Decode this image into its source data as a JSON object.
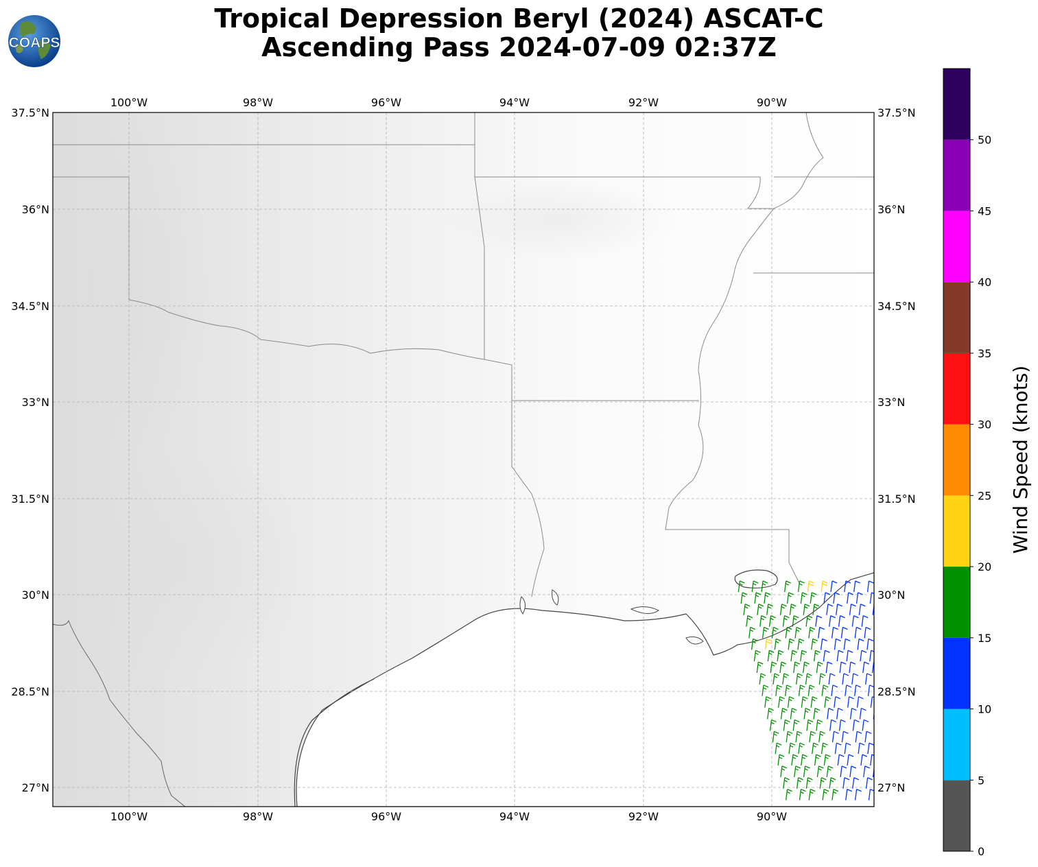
{
  "title": {
    "line1": "Tropical Depression Beryl (2024) ASCAT-C",
    "line2": "Ascending Pass 2024-07-09 02:37Z"
  },
  "logo": {
    "text": "COAPS",
    "icon": "globe-logo-icon"
  },
  "map": {
    "lon_range": [
      -101.2,
      -88.4
    ],
    "lat_range": [
      26.7,
      37.5
    ],
    "gridlines": true,
    "lon_ticks": [
      "100°W",
      "98°W",
      "96°W",
      "94°W",
      "92°W",
      "90°W"
    ],
    "lat_ticks": [
      "37.5°N",
      "36°N",
      "34.5°N",
      "33°N",
      "31.5°N",
      "30°N",
      "28.5°N",
      "27°N"
    ]
  },
  "colorbar": {
    "label": "Wind Speed (knots)",
    "ticks": [
      "0",
      "5",
      "10",
      "15",
      "20",
      "25",
      "30",
      "35",
      "40",
      "45",
      "50"
    ],
    "bins": [
      {
        "min": 0,
        "max": 5,
        "color": "#555555"
      },
      {
        "min": 5,
        "max": 10,
        "color": "#00bfff"
      },
      {
        "min": 10,
        "max": 15,
        "color": "#0033ff"
      },
      {
        "min": 15,
        "max": 20,
        "color": "#009000"
      },
      {
        "min": 20,
        "max": 25,
        "color": "#ffd515"
      },
      {
        "min": 25,
        "max": 30,
        "color": "#ff8c00"
      },
      {
        "min": 30,
        "max": 35,
        "color": "#ff1010"
      },
      {
        "min": 35,
        "max": 40,
        "color": "#85392a"
      },
      {
        "min": 40,
        "max": 45,
        "color": "#ff00ff"
      },
      {
        "min": 45,
        "max": 50,
        "color": "#8a00b5"
      },
      {
        "min": 50,
        "max": 55,
        "color": "#2e0060"
      }
    ]
  },
  "chart_data": {
    "type": "scatter",
    "title": "Tropical Depression Beryl (2024) ASCAT-C Ascending Pass 2024-07-09 02:37Z",
    "xlabel": "",
    "ylabel": "",
    "colorbar_label": "Wind Speed (knots)",
    "xlim": [
      -101.2,
      -88.4
    ],
    "ylim": [
      26.7,
      37.5
    ],
    "swath": {
      "lon_west_edge_south": -89.8,
      "lon_west_edge_north": -90.6,
      "lon_east": -88.4,
      "lat_south": 26.7,
      "lat_north": 30.2
    },
    "wind_summary": [
      {
        "region": "west swath (offshore)",
        "speed_kt": 17,
        "color_bin": "15-20"
      },
      {
        "region": "east swath",
        "speed_kt": 12,
        "color_bin": "10-15"
      },
      {
        "region": "near 29N 90.2W",
        "speed_kt": 22,
        "color_bin": "20-25"
      },
      {
        "region": "near 30N 89.4W",
        "speed_kt": 22,
        "color_bin": "20-25"
      }
    ]
  }
}
